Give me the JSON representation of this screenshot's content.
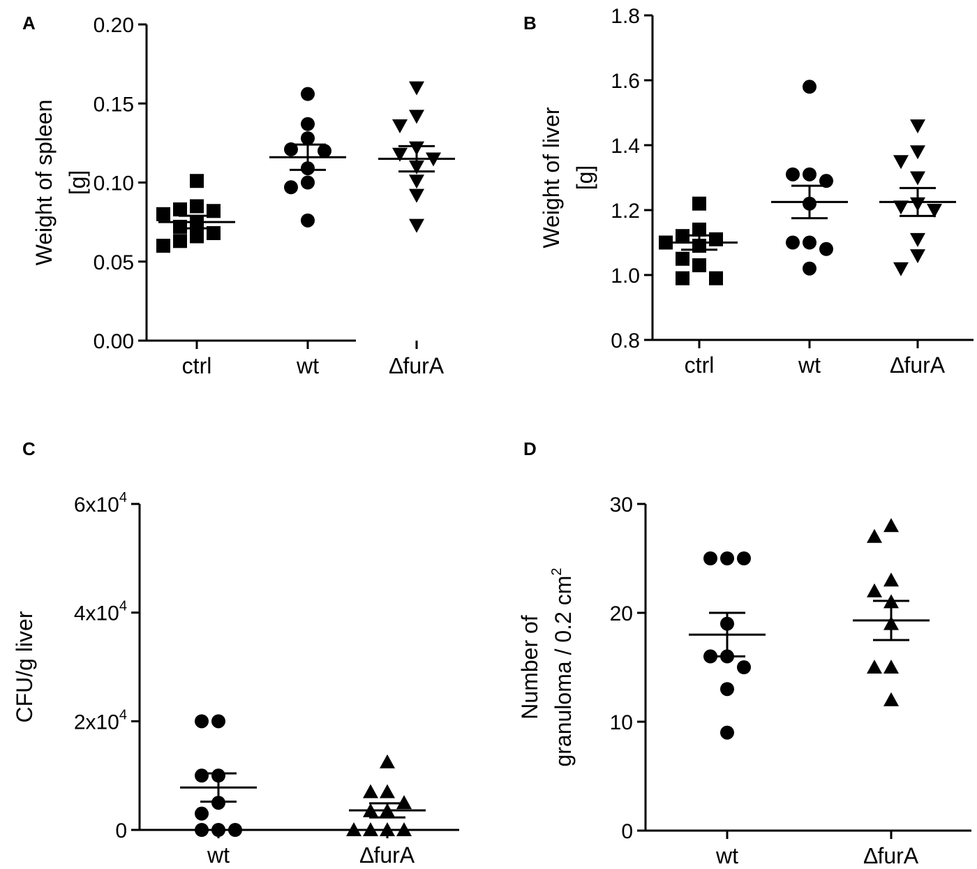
{
  "chart_data": [
    {
      "panel": "A",
      "type": "scatter",
      "ylabel": [
        "Weight of spleen",
        "[g]"
      ],
      "ylim": [
        0,
        0.2
      ],
      "yticks": [
        "0.00",
        "0.05",
        "0.10",
        "0.15",
        "0.20"
      ],
      "ytick_values": [
        0,
        0.05,
        0.1,
        0.15,
        0.2
      ],
      "categories": [
        "ctrl",
        "wt",
        "∆furA"
      ],
      "markers": [
        "square",
        "circle",
        "triangle-down"
      ],
      "series": [
        {
          "name": "ctrl",
          "values": [
            0.101,
            0.085,
            0.083,
            0.082,
            0.08,
            0.075,
            0.072,
            0.068,
            0.066,
            0.063,
            0.06
          ],
          "mean": 0.075,
          "sem": 0.004
        },
        {
          "name": "wt",
          "values": [
            0.156,
            0.137,
            0.128,
            0.121,
            0.12,
            0.109,
            0.1,
            0.097,
            0.076
          ],
          "mean": 0.116,
          "sem": 0.008
        },
        {
          "name": "∆furA",
          "values": [
            0.16,
            0.142,
            0.136,
            0.122,
            0.118,
            0.115,
            0.11,
            0.101,
            0.092,
            0.073
          ],
          "mean": 0.115,
          "sem": 0.008
        }
      ]
    },
    {
      "panel": "B",
      "type": "scatter",
      "ylabel": [
        "Weight of liver",
        "[g]"
      ],
      "ylim": [
        0.8,
        1.8
      ],
      "yticks": [
        "0.8",
        "1.0",
        "1.2",
        "1.4",
        "1.6",
        "1.8"
      ],
      "ytick_values": [
        0.8,
        1.0,
        1.2,
        1.4,
        1.6,
        1.8
      ],
      "categories": [
        "ctrl",
        "wt",
        "∆furA"
      ],
      "markers": [
        "square",
        "circle",
        "triangle-down"
      ],
      "series": [
        {
          "name": "ctrl",
          "values": [
            1.22,
            1.14,
            1.12,
            1.11,
            1.1,
            1.09,
            1.05,
            1.03,
            0.99,
            0.99
          ],
          "mean": 1.1,
          "sem": 0.022
        },
        {
          "name": "wt",
          "values": [
            1.58,
            1.31,
            1.31,
            1.29,
            1.22,
            1.1,
            1.1,
            1.08,
            1.02
          ],
          "mean": 1.225,
          "sem": 0.05
        },
        {
          "name": "∆furA",
          "values": [
            1.46,
            1.38,
            1.35,
            1.3,
            1.22,
            1.21,
            1.2,
            1.11,
            1.06,
            1.02
          ],
          "mean": 1.225,
          "sem": 0.043
        }
      ]
    },
    {
      "panel": "C",
      "type": "scatter",
      "ylabel": [
        "CFU/g liver"
      ],
      "ylim": [
        0,
        60000
      ],
      "ytick_values": [
        0,
        20000,
        40000,
        60000
      ],
      "yticks_sci": [
        {
          "zero": "0"
        },
        {
          "base": "2x10",
          "exp": "4"
        },
        {
          "base": "4x10",
          "exp": "4"
        },
        {
          "base": "6x10",
          "exp": "4"
        }
      ],
      "categories": [
        "wt",
        "∆furA"
      ],
      "markers": [
        "circle",
        "triangle-up"
      ],
      "series": [
        {
          "name": "wt",
          "values": [
            20000,
            20000,
            10000,
            10000,
            5000,
            3000,
            0,
            0,
            0
          ],
          "mean": 7800,
          "sem": 2600
        },
        {
          "name": "∆furA",
          "values": [
            12500,
            7000,
            7000,
            5000,
            3500,
            3500,
            0,
            0,
            0,
            0
          ],
          "mean": 3600,
          "sem": 1300
        }
      ]
    },
    {
      "panel": "D",
      "type": "scatter",
      "ylabel": [
        "Number of",
        "granuloma / 0.2 cm",
        "2"
      ],
      "ylim": [
        0,
        30
      ],
      "yticks": [
        "0",
        "10",
        "20",
        "30"
      ],
      "ytick_values": [
        0,
        10,
        20,
        30
      ],
      "categories": [
        "wt",
        "∆furA"
      ],
      "markers": [
        "circle",
        "triangle-up"
      ],
      "series": [
        {
          "name": "wt",
          "values": [
            25,
            25,
            25,
            19,
            16,
            16,
            15,
            13,
            9
          ],
          "mean": 18,
          "sem": 2
        },
        {
          "name": "∆furA",
          "values": [
            28,
            27,
            23,
            22,
            21,
            19,
            15,
            15,
            12
          ],
          "mean": 19.3,
          "sem": 1.8
        }
      ]
    }
  ]
}
